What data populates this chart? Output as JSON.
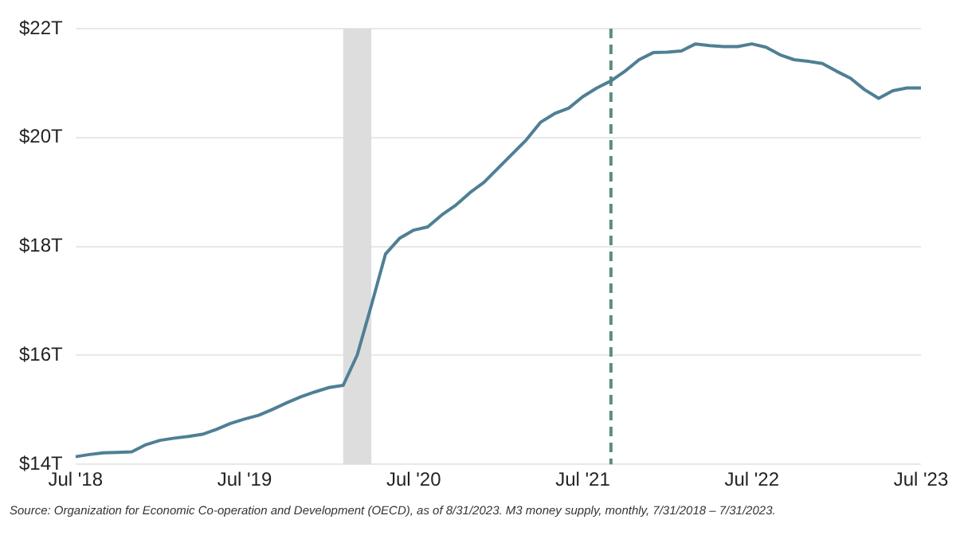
{
  "chart_data": {
    "type": "line",
    "x": [
      "2018-07",
      "2018-08",
      "2018-09",
      "2018-10",
      "2018-11",
      "2018-12",
      "2019-01",
      "2019-02",
      "2019-03",
      "2019-04",
      "2019-05",
      "2019-06",
      "2019-07",
      "2019-08",
      "2019-09",
      "2019-10",
      "2019-11",
      "2019-12",
      "2020-01",
      "2020-02",
      "2020-03",
      "2020-04",
      "2020-05",
      "2020-06",
      "2020-07",
      "2020-08",
      "2020-09",
      "2020-10",
      "2020-11",
      "2020-12",
      "2021-01",
      "2021-02",
      "2021-03",
      "2021-04",
      "2021-05",
      "2021-06",
      "2021-07",
      "2021-08",
      "2021-09",
      "2021-10",
      "2021-11",
      "2021-12",
      "2022-01",
      "2022-02",
      "2022-03",
      "2022-04",
      "2022-05",
      "2022-06",
      "2022-07",
      "2022-08",
      "2022-09",
      "2022-10",
      "2022-11",
      "2022-12",
      "2023-01",
      "2023-02",
      "2023-03",
      "2023-04",
      "2023-05",
      "2023-06",
      "2023-07"
    ],
    "series": [
      {
        "color": "#4f7f95",
        "values": [
          14.14,
          14.18,
          14.21,
          14.22,
          14.23,
          14.36,
          14.44,
          14.48,
          14.51,
          14.55,
          14.64,
          14.75,
          14.83,
          14.9,
          15.01,
          15.13,
          15.24,
          15.33,
          15.41,
          15.45,
          16.01,
          16.92,
          17.86,
          18.15,
          18.3,
          18.36,
          18.58,
          18.76,
          18.99,
          19.18,
          19.44,
          19.7,
          19.96,
          20.28,
          20.44,
          20.54,
          20.75,
          20.91,
          21.04,
          21.22,
          21.43,
          21.56,
          21.57,
          21.59,
          21.72,
          21.69,
          21.67,
          21.67,
          21.72,
          21.66,
          21.52,
          21.43,
          21.4,
          21.36,
          21.22,
          21.09,
          20.88,
          20.72,
          20.86,
          20.91,
          20.91
        ]
      }
    ],
    "xlim": [
      "2018-07",
      "2023-07"
    ],
    "xticks": [
      {
        "value": "2018-07",
        "label": "Jul '18"
      },
      {
        "value": "2019-07",
        "label": "Jul '19"
      },
      {
        "value": "2020-07",
        "label": "Jul '20"
      },
      {
        "value": "2021-07",
        "label": "Jul '21"
      },
      {
        "value": "2022-07",
        "label": "Jul '22"
      },
      {
        "value": "2023-07",
        "label": "Jul '23"
      }
    ],
    "ylim": [
      14,
      22
    ],
    "yticks": [
      {
        "value": 14,
        "label": "$14T"
      },
      {
        "value": 16,
        "label": "$16T"
      },
      {
        "value": 18,
        "label": "$18T"
      },
      {
        "value": 20,
        "label": "$20T"
      },
      {
        "value": 22,
        "label": "$22T"
      }
    ],
    "grid": "y",
    "legend": false,
    "marker": "none",
    "line_style": "solid",
    "bands": [
      {
        "axis": "x",
        "from": "2020-02",
        "to": "2020-04",
        "color": "#dddddd"
      }
    ],
    "ref_lines": [
      {
        "axis": "x",
        "value": "2021-09",
        "color": "#5b8f7b",
        "line_style": "dashed"
      }
    ],
    "annotations": [
      "Source: Organization for Economic Co-operation and Development (OECD), as of 8/31/2023. M3 money supply, monthly, 7/31/2018 – 7/31/2023."
    ]
  }
}
